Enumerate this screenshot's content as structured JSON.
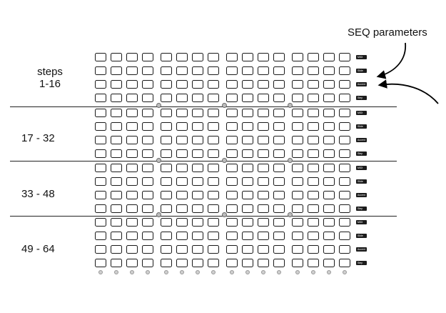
{
  "annotation": {
    "seq_parameters": "SEQ parameters"
  },
  "sections": [
    {
      "label_line1": "steps",
      "label_line2": "1-16"
    },
    {
      "label_line1": "17 - 32",
      "label_line2": ""
    },
    {
      "label_line1": "33 - 48",
      "label_line2": ""
    },
    {
      "label_line1": "49 - 64",
      "label_line2": ""
    }
  ],
  "grid": {
    "rows_per_section": 4,
    "columns": 16,
    "column_groups": 4
  },
  "param_buttons": [
    "MIDI",
    "Slide",
    "Accent",
    "Step"
  ],
  "colors": {
    "pad_border": "#1a1a1a",
    "param_button": "#1c1c1c",
    "divider": "#222222",
    "knob": "#bdbdbd"
  }
}
